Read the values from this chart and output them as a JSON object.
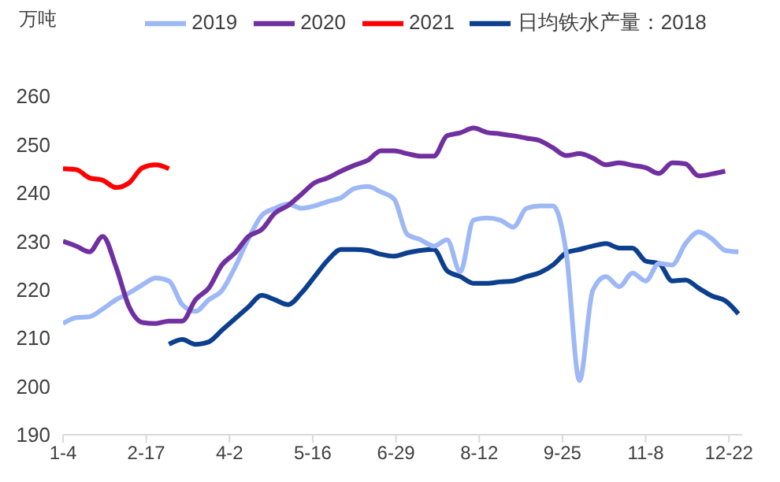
{
  "chart_data": {
    "type": "line",
    "ylabel": "万吨",
    "legend": "top",
    "x": [
      "--01-04",
      "--01-11",
      "--01-18",
      "--01-25",
      "--02-01",
      "--02-08",
      "--02-15",
      "--02-22",
      "--03-01",
      "--03-08",
      "--03-15",
      "--03-22",
      "--03-29",
      "--04-05",
      "--04-12",
      "--04-19",
      "--04-26",
      "--05-03",
      "--05-10",
      "--05-17",
      "--05-24",
      "--05-31",
      "--06-07",
      "--06-14",
      "--06-21",
      "--06-28",
      "--07-05",
      "--07-12",
      "--07-19",
      "--07-26",
      "--08-02",
      "--08-09",
      "--08-16",
      "--08-23",
      "--08-30",
      "--09-06",
      "--09-13",
      "--09-20",
      "--09-27",
      "--10-04",
      "--10-11",
      "--10-18",
      "--10-25",
      "--11-01",
      "--11-08",
      "--11-15",
      "--11-22",
      "--11-29",
      "--12-06",
      "--12-13",
      "--12-20",
      "--12-27"
    ],
    "xlim": [
      "--01-04",
      "--12-29"
    ],
    "xticks": [
      {
        "value": "--01-04",
        "label": "1-4"
      },
      {
        "value": "--02-17",
        "label": "2-17"
      },
      {
        "value": "--04-02",
        "label": "4-2"
      },
      {
        "value": "--05-16",
        "label": "5-16"
      },
      {
        "value": "--06-29",
        "label": "6-29"
      },
      {
        "value": "--08-12",
        "label": "8-12"
      },
      {
        "value": "--09-25",
        "label": "9-25"
      },
      {
        "value": "--11-08",
        "label": "11-8"
      },
      {
        "value": "--12-22",
        "label": "12-22"
      }
    ],
    "ylim": [
      190,
      260
    ],
    "yticks": [
      190,
      200,
      210,
      220,
      230,
      240,
      250,
      260
    ],
    "series": [
      {
        "name": "日均铁水产量：2018",
        "color": "#0d3f8f",
        "values": [
          null,
          null,
          null,
          null,
          null,
          null,
          null,
          null,
          208.7,
          209.7,
          208.7,
          209.2,
          211.6,
          214.0,
          216.4,
          218.8,
          217.9,
          216.9,
          219.3,
          222.7,
          226.1,
          228.3,
          228.3,
          228.1,
          227.3,
          226.9,
          227.6,
          228.1,
          228.3,
          223.9,
          222.7,
          221.3,
          221.3,
          221.6,
          221.8,
          222.7,
          223.5,
          225.1,
          227.6,
          228.3,
          229.0,
          229.5,
          228.6,
          228.6,
          225.9,
          225.4,
          221.8,
          222.0,
          220.3,
          218.7,
          217.7,
          215.0
        ]
      },
      {
        "name": "2019",
        "color": "#9db8f5",
        "values": [
          213.0,
          214.2,
          214.4,
          216.0,
          217.9,
          219.3,
          221.0,
          222.4,
          221.8,
          216.9,
          215.5,
          217.9,
          219.8,
          224.7,
          230.5,
          235.3,
          236.8,
          237.7,
          236.8,
          237.3,
          238.2,
          239.0,
          240.9,
          241.3,
          240.2,
          238.7,
          231.4,
          230.3,
          229.0,
          230.3,
          223.7,
          234.4,
          234.8,
          234.4,
          232.9,
          236.8,
          237.3,
          237.3,
          227.6,
          201.2,
          219.8,
          222.7,
          220.6,
          223.4,
          221.8,
          225.4,
          225.1,
          229.5,
          231.9,
          230.5,
          228.1,
          227.8
        ]
      },
      {
        "name": "2020",
        "color": "#7030a0",
        "values": [
          230.0,
          229.0,
          227.8,
          231.0,
          224.7,
          216.4,
          213.2,
          213.0,
          213.5,
          213.5,
          217.9,
          220.3,
          225.1,
          227.6,
          231.0,
          232.4,
          235.8,
          237.4,
          239.7,
          242.1,
          243.1,
          244.5,
          245.7,
          246.7,
          248.7,
          248.7,
          248.1,
          247.6,
          247.6,
          251.8,
          252.4,
          253.4,
          252.5,
          252.2,
          251.8,
          251.3,
          250.8,
          249.3,
          247.7,
          248.1,
          247.2,
          245.8,
          246.2,
          245.7,
          245.2,
          244.0,
          246.2,
          246.0,
          243.5,
          243.9,
          244.5,
          null
        ]
      },
      {
        "name": "2021",
        "color": "#ff0000",
        "values": [
          245.0,
          244.8,
          243.1,
          242.6,
          241.1,
          242.1,
          245.2,
          245.8,
          245.0,
          null,
          null,
          null,
          null,
          null,
          null,
          null,
          null,
          null,
          null,
          null,
          null,
          null,
          null,
          null,
          null,
          null,
          null,
          null,
          null,
          null,
          null,
          null,
          null,
          null,
          null,
          null,
          null,
          null,
          null,
          null,
          null,
          null,
          null,
          null,
          null,
          null,
          null,
          null,
          null,
          null,
          null,
          null
        ]
      }
    ]
  }
}
